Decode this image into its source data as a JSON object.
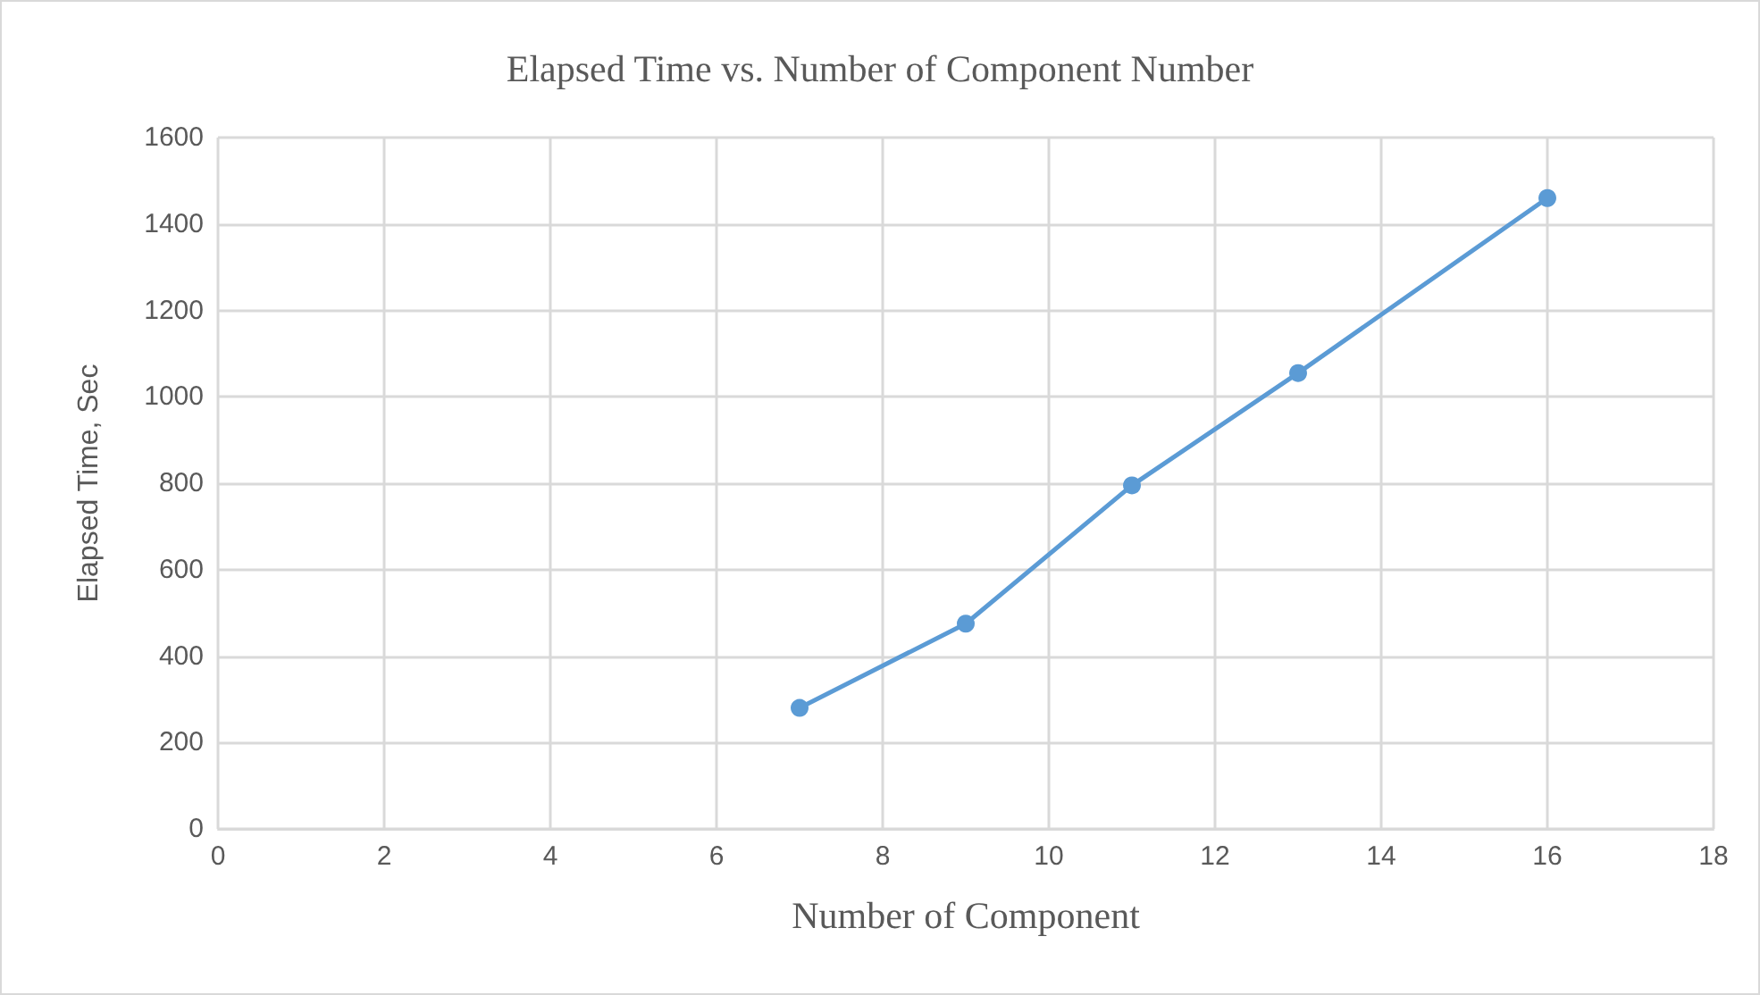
{
  "chart_data": {
    "type": "line",
    "title": "Elapsed Time vs. Number of Component Number",
    "xlabel": "Number of Component",
    "ylabel": "Elapsed Time, Sec",
    "x": [
      7,
      9,
      11,
      13,
      16
    ],
    "series": [
      {
        "color": "#5b9bd5",
        "values": [
          280,
          475,
          795,
          1055,
          1460
        ]
      }
    ],
    "xlim": [
      0,
      18
    ],
    "xticks": [
      0,
      2,
      4,
      6,
      8,
      10,
      12,
      14,
      16,
      18
    ],
    "ylim": [
      0,
      1600
    ],
    "yticks": [
      0,
      200,
      400,
      600,
      800,
      1000,
      1200,
      1400,
      1600
    ],
    "grid": true,
    "marker": "circle",
    "line_style": "solid"
  }
}
